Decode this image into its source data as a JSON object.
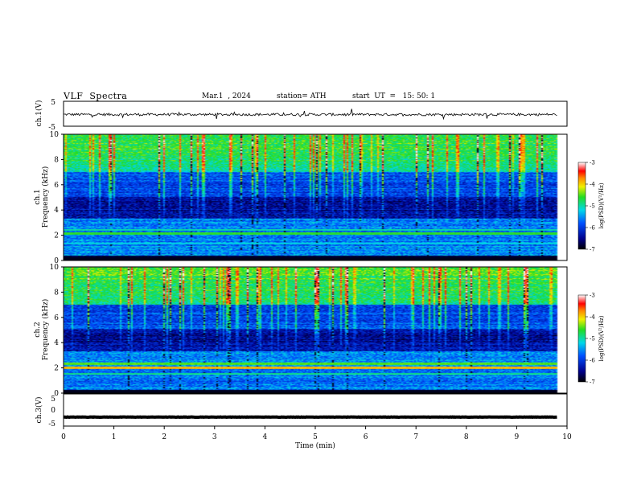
{
  "header": {
    "title": "VLF  Spectra",
    "date": "Mar.1  , 2024",
    "station": "station= ATH",
    "start": "start  UT  =   15: 50: 1"
  },
  "chart_data": [
    {
      "type": "line",
      "name": "ch1-waveform",
      "ylabel": "ch.1(V)",
      "ylim": [
        -5,
        5
      ],
      "yticks": [
        "5",
        "-5"
      ],
      "xlim": [
        0,
        10
      ],
      "level": -0.3,
      "noise": 0.5,
      "data_extent_min": 9.8
    },
    {
      "type": "heatmap",
      "name": "ch1-spectrogram",
      "ylabel_channel": "ch.1",
      "ylabel": "Frequency  (kHz)",
      "ylim": [
        0,
        10
      ],
      "yticks": [
        "0",
        "2",
        "4",
        "6",
        "8",
        "10"
      ],
      "xlim": [
        0,
        10
      ],
      "data_extent_min": 9.8,
      "colorbar": {
        "label": "log(PSD)(V²/Hz)",
        "min": -7,
        "max": -3,
        "ticks": [
          "-3",
          "-4",
          "-5",
          "-6",
          "-7"
        ]
      },
      "bands_khz": [
        {
          "f": 2.1,
          "v": -4.6
        },
        {
          "f": 2.4,
          "v": -5.0
        },
        {
          "f": 1.3,
          "v": -5.2
        },
        {
          "f": 0.3,
          "v": -6.8
        }
      ]
    },
    {
      "type": "heatmap",
      "name": "ch2-spectrogram",
      "ylabel_channel": "ch.2",
      "ylabel": "Frequency  (kHz)",
      "ylim": [
        0,
        10
      ],
      "yticks": [
        "0",
        "2",
        "4",
        "6",
        "8",
        "10"
      ],
      "xlim": [
        0,
        10
      ],
      "data_extent_min": 9.8,
      "colorbar": {
        "label": "log(PSD)(V²/Hz)",
        "min": -7,
        "max": -3,
        "ticks": [
          "-3",
          "-4",
          "-5",
          "-6",
          "-7"
        ]
      },
      "bands_khz": [
        {
          "f": 2.0,
          "v": -3.9
        },
        {
          "f": 2.3,
          "v": -4.5
        },
        {
          "f": 1.5,
          "v": -4.9
        }
      ]
    },
    {
      "type": "line",
      "name": "ch3-waveform",
      "ylabel": "ch.3(V)",
      "ylim": [
        -5,
        5
      ],
      "yticks": [
        "5",
        "0",
        "-5"
      ],
      "xlim": [
        0,
        10
      ],
      "level": -2.2,
      "noise": 0.05,
      "data_extent_min": 9.8,
      "xlabel": "Time  (min)",
      "xticks": [
        "0",
        "1",
        "2",
        "3",
        "4",
        "5",
        "6",
        "7",
        "8",
        "9",
        "10"
      ]
    }
  ]
}
